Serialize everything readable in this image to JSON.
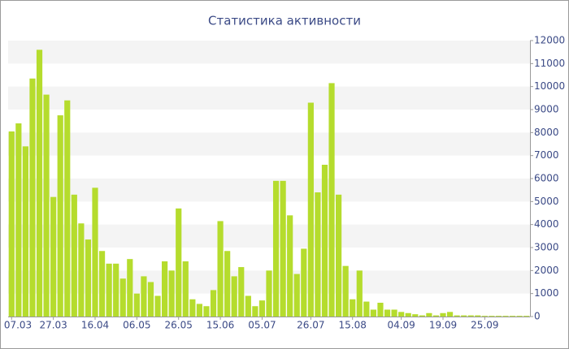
{
  "chart_data": {
    "type": "bar",
    "title": "Статистика активности",
    "categories": [
      "07.03",
      null,
      null,
      null,
      null,
      null,
      "27.03",
      null,
      null,
      null,
      null,
      null,
      "16.04",
      null,
      null,
      null,
      null,
      null,
      "06.05",
      null,
      null,
      null,
      null,
      null,
      "26.05",
      null,
      null,
      null,
      null,
      null,
      "15.06",
      null,
      null,
      null,
      null,
      null,
      "05.07",
      null,
      null,
      null,
      null,
      null,
      null,
      "26.07",
      null,
      null,
      null,
      null,
      null,
      "15.08",
      null,
      null,
      null,
      null,
      null,
      null,
      "04.09",
      null,
      null,
      null,
      null,
      null,
      "19.09",
      null,
      null,
      null,
      null,
      null,
      "25.09",
      null,
      null,
      null,
      null,
      null,
      null
    ],
    "values": [
      8050,
      8400,
      7400,
      10350,
      11600,
      9650,
      5200,
      8750,
      9400,
      5300,
      4050,
      3350,
      5600,
      2850,
      2300,
      2300,
      1650,
      2500,
      1000,
      1750,
      1500,
      900,
      2400,
      2000,
      4700,
      2400,
      750,
      550,
      450,
      1150,
      4150,
      2850,
      1750,
      2150,
      900,
      450,
      700,
      2000,
      5900,
      5900,
      4400,
      1850,
      2950,
      9300,
      5400,
      6600,
      10150,
      5300,
      2200,
      750,
      2000,
      650,
      300,
      600,
      300,
      300,
      200,
      150,
      100,
      50,
      150,
      50,
      150,
      200,
      50,
      50,
      50,
      50,
      30,
      30,
      30,
      30,
      30,
      30,
      30
    ],
    "color": "#b5dc2d",
    "ylim": [
      0,
      12000
    ],
    "yticks": [
      0,
      1000,
      2000,
      3000,
      4000,
      5000,
      6000,
      7000,
      8000,
      9000,
      10000,
      11000,
      12000
    ],
    "grid": true
  }
}
